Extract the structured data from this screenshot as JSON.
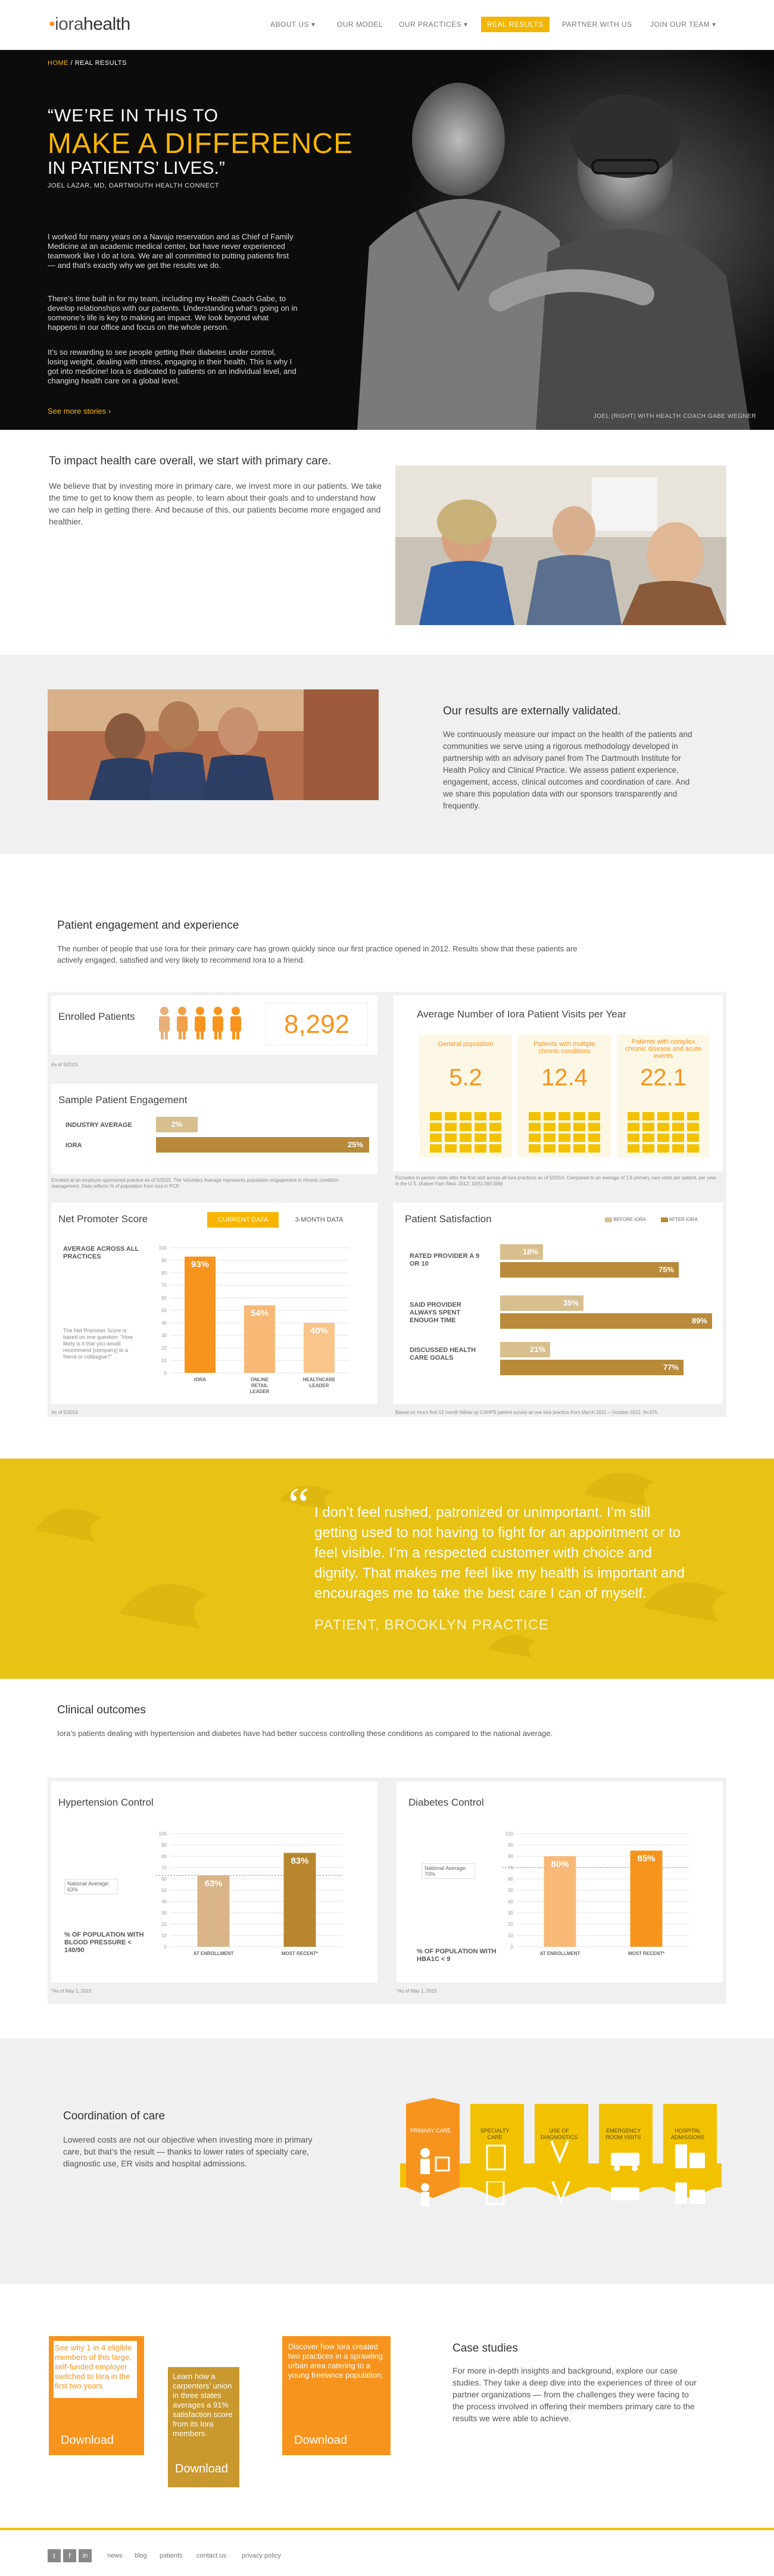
{
  "header": {
    "logo_a": "iora",
    "logo_b": "health",
    "nav": [
      "ABOUT US",
      "OUR MODEL",
      "OUR PRACTICES",
      "REAL RESULTS",
      "PARTNER WITH US",
      "JOIN OUR TEAM"
    ],
    "active": "REAL RESULTS"
  },
  "hero": {
    "breadcrumb_home": "HOME",
    "breadcrumb_current": "REAL RESULTS",
    "quote_line1": "“WE’RE IN THIS TO",
    "quote_line2": "MAKE A DIFFERENCE",
    "quote_line3": "IN PATIENTS’ LIVES.”",
    "attribution": "JOEL LAZAR, MD, DARTMOUTH HEALTH CONNECT",
    "paragraphs": [
      "I worked for many years on a Navajo reservation and as Chief of Family Medicine at an academic medical center, but have never experienced teamwork like I do at Iora. We are all committed to putting patients first — and that’s exactly why we get the results we do.",
      "There’s time built in for my team, including my Health Coach Gabe, to develop relationships with our patients. Understanding what’s going on in someone’s life is key to making an impact. We look beyond what happens in our office and focus on the whole person.",
      "It’s so rewarding to see people getting their diabetes under control, losing weight, dealing with stress, engaging in their health. This is why I got into medicine! Iora is dedicated to patients on an individual level, and changing health care on a global level."
    ],
    "see_more": "See more stories",
    "photo_caption": "JOEL (RIGHT) WITH HEALTH COACH GABE WEGNER"
  },
  "primary_care": {
    "title": "To impact health care overall, we start with primary care.",
    "body": "We believe that by investing more in primary care, we invest more in our patients. We take the time to get to know them as people, to learn about their goals and to understand how we can help in getting there. And because of this, our patients become more engaged and healthier."
  },
  "validated": {
    "title": "Our results are externally validated.",
    "body": "We continuously measure our impact on the health of the patients and communities we serve using a rigorous methodology developed in partnership with an advisory panel from The Dartmouth Institute for Health Policy and Clinical Practice. We assess patient experience, engagement, access, clinical outcomes and coordination of care. And we share this population data with our sponsors transparently and frequently."
  },
  "engagement": {
    "title": "Patient engagement and experience",
    "intro": "The number of people that use Iora for their primary care has grown quickly since our first practice opened in 2012. Results show that these patients are actively engaged, satisfied and very likely to recommend Iora to a friend.",
    "enrolled": {
      "label": "Enrolled Patients",
      "value": "8,292",
      "note": "As of 5/2015"
    },
    "sample": {
      "title": "Sample Patient Engagement",
      "rows": [
        {
          "label": "INDUSTRY AVERAGE",
          "value": "2%"
        },
        {
          "label": "IORA",
          "value": "25%"
        }
      ],
      "note": "Enrolled at an employer-sponsored practice as of 5/2015. The Voluntary Average represents population engagement in chronic condition management. Data reflects % of population from Iora in PCP."
    },
    "visits": {
      "title": "Average Number of Iora Patient Visits per Year",
      "groups": [
        {
          "label": "General population",
          "value": "5.2"
        },
        {
          "label": "Patients with multiple chronic conditions",
          "value": "12.4"
        },
        {
          "label": "Patients with complex chronic disease and acute events",
          "value": "22.1"
        }
      ],
      "note": "Excludes in-person visits after the first visit across all Iora practices as of 5/2014. Compared to an average of 1.6 primary care visits per patient, per year in the U.S. (Kaiser Fam Med. 2012; 10(5):393-399)"
    },
    "nps": {
      "title": "Net Promoter Score",
      "tab_current": "CURRENT DATA",
      "tab_3month": "3-MONTH DATA",
      "avg_label": "AVERAGE ACROSS ALL PRACTICES",
      "desc": "The Net Promoter Score is based on one question: “How likely is it that you would recommend [company] to a friend or colleague?”",
      "note": "As of 5/2014"
    },
    "satisfaction": {
      "title": "Patient Satisfaction",
      "legend_before": "BEFORE IORA",
      "legend_after": "AFTER IORA",
      "rows": [
        {
          "label": "RATED PROVIDER A 9 OR 10",
          "before": "18%",
          "after": "75%"
        },
        {
          "label": "SAID PROVIDER ALWAYS SPENT ENOUGH TIME",
          "before": "35%",
          "after": "89%"
        },
        {
          "label": "DISCUSSED HEALTH CARE GOALS",
          "before": "21%",
          "after": "77%"
        }
      ],
      "note": "Based on Iora's first 12 month follow up CAHPS patient survey at one Iora practice from March 2011 – October 2012. N=375."
    }
  },
  "testimonial": {
    "quote": "I don’t feel rushed, patronized or unimportant. I’m still getting used to not having to fight for an appointment or to feel visible. I’m a respected customer with choice and dignity. That makes me feel like my health is important and encourages me to take the best care I can of myself.",
    "attribution": "PATIENT, BROOKLYN PRACTICE"
  },
  "clinical": {
    "title": "Clinical outcomes",
    "intro": "Iora’s patients dealing with hypertension and diabetes have had better success controlling these conditions as compared to the national average.",
    "hypertension": {
      "title": "Hypertension Control",
      "national": "National Average: 63%",
      "ylabel": "% OF POPULATION WITH BLOOD PRESSURE < 140/90",
      "note": "*As of May 1, 2015"
    },
    "diabetes": {
      "title": "Diabetes Control",
      "national": "National Average: 70%",
      "ylabel": "% OF POPULATION WITH HBA1C < 9",
      "note": "*As of May 1, 2015"
    }
  },
  "coordination": {
    "title": "Coordination of care",
    "body": "Lowered costs are not our objective when investing more in primary care, but that’s the result — thanks to lower rates of specialty care, diagnostic use, ER visits and hospital admissions.",
    "items": [
      "PRIMARY CARE",
      "SPECIALTY CARE",
      "USE OF DIAGNOSTICS",
      "EMERGENCY ROOM VISITS",
      "HOSPITAL ADMISSIONS"
    ]
  },
  "cases": {
    "cards": [
      {
        "text": "See why 1 in 4 eligible members of this large, self-funded employer switched to Iora in the first two years.",
        "button": "Download"
      },
      {
        "text": "Learn how a carpenters’ union in three states averages a 91% satisfaction score from its Iora members.",
        "button": "Download"
      },
      {
        "text": "Discover how Iora created two practices in a sprawling urban area catering to a young freelance population.",
        "button": "Download"
      }
    ],
    "title": "Case studies",
    "body": "For more in-depth insights and background, explore our case studies. They take a deep dive into the experiences of three of our partner organizations — from the challenges they were facing to the process involved in offering their members primary care to the results we were able to achieve."
  },
  "footer": {
    "links": [
      "news",
      "blog",
      "patients",
      "contact us",
      "privacy policy"
    ]
  },
  "chart_data": [
    {
      "type": "bar",
      "title": "Net Promoter Score",
      "categories": [
        "IORA",
        "ONLINE RETAIL LEADER",
        "HEALTHCARE LEADER"
      ],
      "values": [
        93,
        54,
        40
      ],
      "ylim": [
        0,
        100
      ],
      "ticks": [
        0,
        10,
        20,
        30,
        40,
        50,
        60,
        70,
        80,
        90,
        100
      ]
    },
    {
      "type": "bar",
      "title": "Hypertension Control",
      "categories": [
        "AT ENROLLMENT",
        "MOST RECENT*"
      ],
      "values": [
        63,
        83
      ],
      "ylim": [
        0,
        100
      ],
      "reference": 63,
      "ticks": [
        0,
        10,
        20,
        30,
        40,
        50,
        60,
        70,
        80,
        90,
        100
      ]
    },
    {
      "type": "bar",
      "title": "Diabetes Control",
      "categories": [
        "AT ENROLLMENT",
        "MOST RECENT*"
      ],
      "values": [
        80,
        85
      ],
      "ylim": [
        0,
        100
      ],
      "reference": 70,
      "ticks": [
        0,
        10,
        20,
        30,
        40,
        50,
        60,
        70,
        80,
        90,
        100
      ]
    }
  ]
}
